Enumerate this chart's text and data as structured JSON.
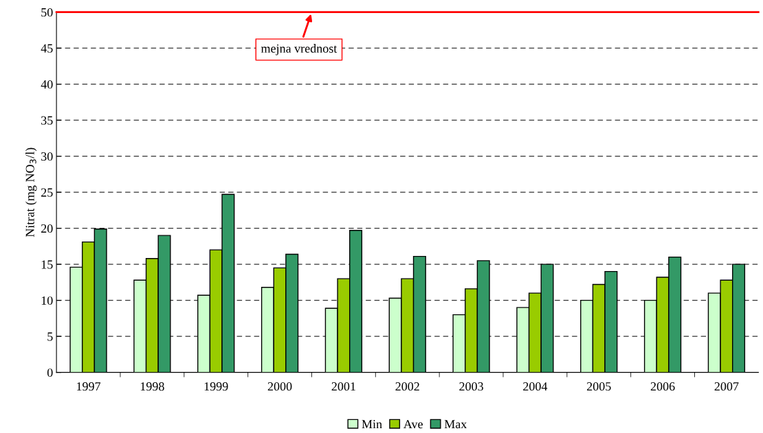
{
  "chart_data": {
    "type": "bar",
    "ylabel": "Nitrat (mg NO$_{3}$/l)",
    "categories": [
      "1997",
      "1998",
      "1999",
      "2000",
      "2001",
      "2002",
      "2003",
      "2004",
      "2005",
      "2006",
      "2007"
    ],
    "series": [
      {
        "name": "Min",
        "color": "#ccffcc",
        "values": [
          14.6,
          12.8,
          10.7,
          11.8,
          8.9,
          10.3,
          8.0,
          9.0,
          10.0,
          10.0,
          11.0
        ]
      },
      {
        "name": "Ave",
        "color": "#99cc00",
        "values": [
          18.1,
          15.8,
          17.0,
          14.5,
          13.0,
          13.0,
          11.6,
          11.0,
          12.2,
          13.2,
          12.8
        ]
      },
      {
        "name": "Max",
        "color": "#339966",
        "values": [
          19.9,
          19.0,
          24.7,
          16.4,
          19.7,
          16.1,
          15.5,
          15.0,
          14.0,
          16.0,
          15.0
        ]
      }
    ],
    "ylim": [
      0,
      50
    ],
    "yticks": [
      0,
      5,
      10,
      15,
      20,
      25,
      30,
      35,
      40,
      45,
      50
    ],
    "ref_lines": [
      {
        "axis": "y",
        "value": 50,
        "label": "mejna vrednost",
        "color": "#ff0000"
      }
    ],
    "grid": "y",
    "legend": "bottom"
  }
}
